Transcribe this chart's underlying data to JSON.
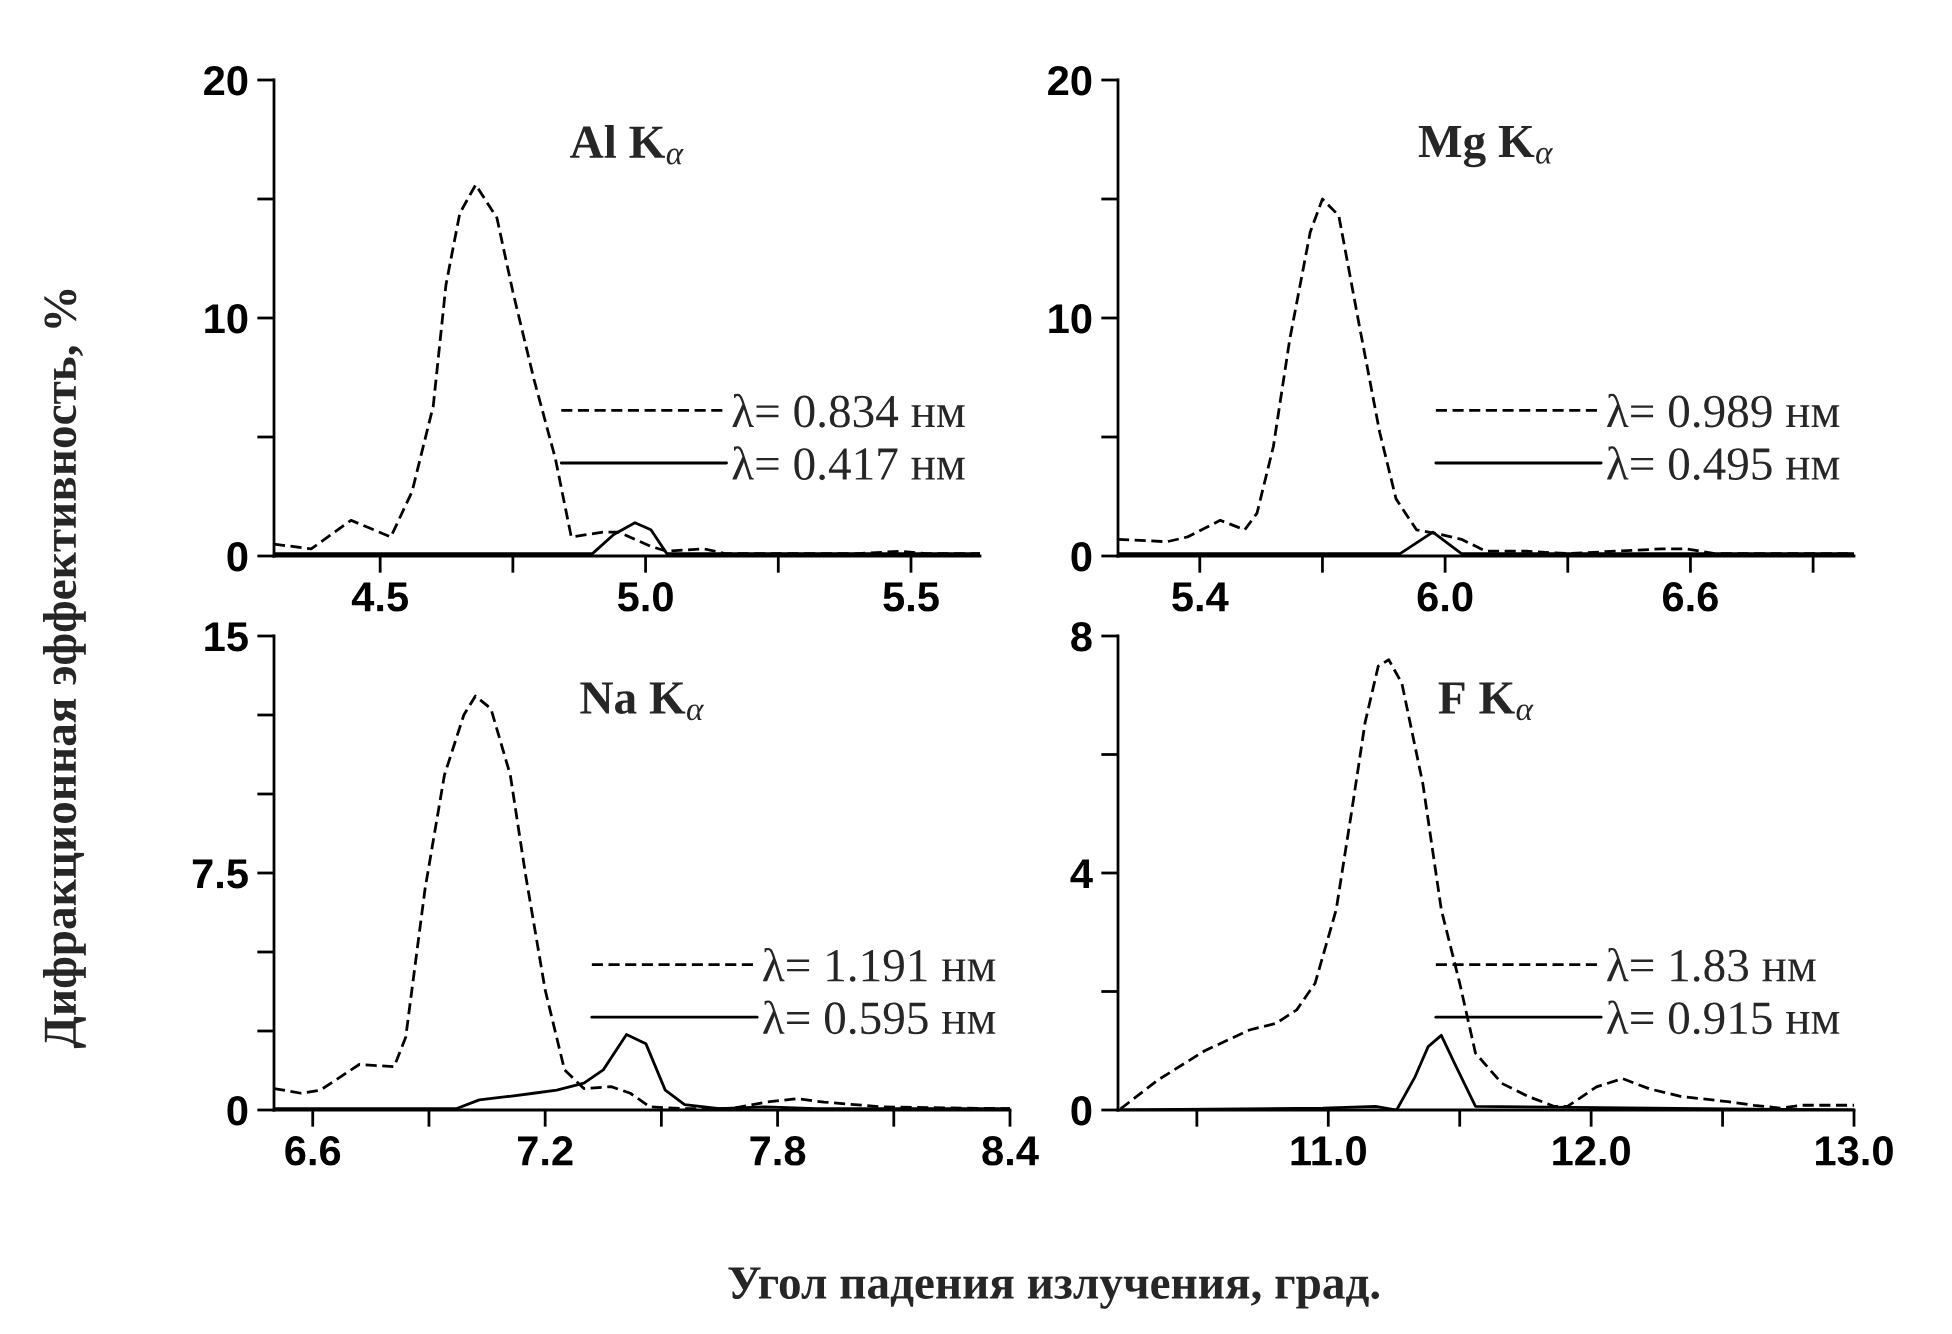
{
  "chart_data": [
    {
      "type": "line",
      "title": "Al K$_{α}$",
      "ylabel": "Дифракционная эффективность, %",
      "xlim": [
        4.3,
        5.63
      ],
      "ylim": [
        0,
        20
      ],
      "legend": "right",
      "grid": false,
      "xticks": [
        4.5,
        {
          "value": 4.75,
          "label": null
        },
        {
          "value": 5,
          "label": "5.0"
        },
        {
          "value": 5.25,
          "label": null
        },
        5.5
      ],
      "yticks": [
        0,
        {
          "value": 5,
          "label": null
        },
        10,
        {
          "value": 15,
          "label": null
        },
        20
      ],
      "series": [
        {
          "name": "λ= 0.834 нм",
          "color": "#000000",
          "line_style": "dashed",
          "x": [
            4.3,
            4.37,
            4.445,
            4.52,
            4.56,
            4.6,
            4.624,
            4.65,
            4.68,
            4.72,
            4.75,
            4.79,
            4.83,
            4.86,
            4.92,
            4.95,
            5.01,
            5.04,
            5.11,
            5.15,
            5.4,
            5.48,
            5.53,
            5.63
          ],
          "values": [
            0.5,
            0.3,
            1.5,
            0.8,
            2.7,
            6.3,
            11.4,
            14.4,
            15.6,
            14.2,
            11.1,
            7.4,
            4.1,
            0.8,
            1.0,
            1.0,
            0.4,
            0.2,
            0.3,
            0.1,
            0.1,
            0.2,
            0.1,
            0.1
          ]
        },
        {
          "name": "λ= 0.417 нм",
          "color": "#000000",
          "line_style": "solid",
          "x": [
            4.3,
            4.36,
            4.445,
            4.51,
            4.9,
            4.94,
            4.98,
            5.01,
            5.04,
            5.63
          ],
          "values": [
            0.1,
            0.1,
            0.1,
            0.1,
            0.1,
            0.9,
            1.4,
            1.1,
            0.1,
            0.1
          ]
        }
      ]
    },
    {
      "type": "line",
      "title": "Mg K$_{α}$",
      "xlim": [
        5.2,
        7.0
      ],
      "ylim": [
        0,
        20
      ],
      "legend": "right",
      "grid": false,
      "xticks": [
        5.4,
        {
          "value": 5.7,
          "label": null
        },
        {
          "value": 6,
          "label": "6.0"
        },
        {
          "value": 6.3,
          "label": null
        },
        6.6,
        {
          "value": 6.9,
          "label": null
        }
      ],
      "yticks": [
        0,
        {
          "value": 5,
          "label": null
        },
        10,
        {
          "value": 15,
          "label": null
        },
        20
      ],
      "series": [
        {
          "name": "λ= 0.989 нм",
          "color": "#000000",
          "line_style": "dashed",
          "x": [
            5.2,
            5.32,
            5.37,
            5.45,
            5.51,
            5.54,
            5.58,
            5.62,
            5.67,
            5.7,
            5.74,
            5.79,
            5.84,
            5.88,
            5.93,
            5.99,
            6.04,
            6.1,
            6.2,
            6.3,
            6.53,
            6.59,
            6.66,
            7.0
          ],
          "values": [
            0.7,
            0.6,
            0.8,
            1.5,
            1.1,
            1.8,
            4.6,
            9.1,
            13.6,
            15.0,
            14.3,
            9.7,
            5.2,
            2.4,
            1.1,
            0.9,
            0.7,
            0.2,
            0.2,
            0.1,
            0.3,
            0.3,
            0.1,
            0.1
          ]
        },
        {
          "name": "λ= 0.495 нм",
          "color": "#000000",
          "line_style": "solid",
          "x": [
            5.2,
            5.89,
            5.97,
            6.04,
            7.0
          ],
          "values": [
            0.1,
            0.1,
            1.0,
            0.1,
            0.1
          ]
        }
      ]
    },
    {
      "type": "line",
      "title": "Na K$_{α}$",
      "xlabel": "Угол падения излучения, град.",
      "xlim": [
        6.5,
        8.4
      ],
      "ylim": [
        0,
        15
      ],
      "legend": "right",
      "grid": false,
      "xticks": [
        6.6,
        {
          "value": 6.9,
          "label": null
        },
        7.2,
        {
          "value": 7.5,
          "label": null
        },
        7.8,
        {
          "value": 8.1,
          "label": null
        },
        8.4
      ],
      "yticks": [
        0,
        {
          "value": 2.5,
          "label": null
        },
        {
          "value": 5,
          "label": null
        },
        7.5,
        {
          "value": 10,
          "label": null
        },
        {
          "value": 12.5,
          "label": null
        },
        15
      ],
      "series": [
        {
          "name": "λ= 1.191 нм",
          "color": "#000000",
          "line_style": "dashed",
          "x": [
            6.5,
            6.57,
            6.62,
            6.72,
            6.81,
            6.84,
            6.89,
            6.94,
            6.99,
            7.02,
            7.06,
            7.11,
            7.15,
            7.2,
            7.25,
            7.3,
            7.37,
            7.42,
            7.47,
            7.56,
            7.68,
            7.77,
            7.85,
            7.92,
            8.07,
            8.4
          ],
          "values": [
            0.68,
            0.53,
            0.63,
            1.44,
            1.37,
            2.3,
            7.0,
            10.6,
            12.5,
            13.1,
            12.7,
            10.6,
            7.4,
            3.8,
            1.27,
            0.68,
            0.74,
            0.53,
            0.1,
            0.04,
            0.04,
            0.25,
            0.36,
            0.25,
            0.1,
            0.04
          ]
        },
        {
          "name": "λ= 0.595 нм",
          "color": "#000000",
          "line_style": "solid",
          "x": [
            6.5,
            6.97,
            7.03,
            7.1,
            7.17,
            7.23,
            7.3,
            7.35,
            7.41,
            7.46,
            7.51,
            7.56,
            7.65,
            7.77,
            7.9,
            8.4
          ],
          "values": [
            0.04,
            0.04,
            0.32,
            0.42,
            0.53,
            0.63,
            0.85,
            1.27,
            2.39,
            2.1,
            0.63,
            0.17,
            0.04,
            0.1,
            0.04,
            0.04
          ]
        }
      ]
    },
    {
      "type": "line",
      "title": "F K$_{α}$",
      "xlim": [
        10.2,
        13.0
      ],
      "ylim": [
        0,
        8
      ],
      "legend": "right",
      "grid": false,
      "xticks": [
        {
          "value": 10.5,
          "label": null
        },
        {
          "value": 11,
          "label": "11.0"
        },
        {
          "value": 11.5,
          "label": null
        },
        {
          "value": 12,
          "label": "12.0"
        },
        {
          "value": 12.5,
          "label": null
        },
        {
          "value": 13,
          "label": "13.0"
        }
      ],
      "yticks": [
        0,
        {
          "value": 2,
          "label": null
        },
        4,
        {
          "value": 6,
          "label": null
        },
        8
      ],
      "series": [
        {
          "name": "λ= 1.83 нм",
          "color": "#000000",
          "line_style": "dashed",
          "x": [
            10.21,
            10.35,
            10.53,
            10.7,
            10.8,
            10.88,
            10.95,
            11.03,
            11.09,
            11.14,
            11.19,
            11.23,
            11.28,
            11.36,
            11.43,
            11.5,
            11.56,
            11.66,
            11.76,
            11.86,
            11.91,
            12.02,
            12.12,
            12.22,
            12.34,
            12.52,
            12.62,
            12.72,
            12.8,
            13.0
          ],
          "values": [
            0.02,
            0.5,
            1.0,
            1.35,
            1.46,
            1.69,
            2.14,
            3.38,
            5.07,
            6.54,
            7.49,
            7.6,
            7.2,
            5.5,
            3.38,
            2.14,
            0.96,
            0.45,
            0.23,
            0.06,
            0.06,
            0.39,
            0.53,
            0.36,
            0.23,
            0.14,
            0.08,
            0.03,
            0.08,
            0.08
          ]
        },
        {
          "name": "λ= 0.915 нм",
          "color": "#000000",
          "line_style": "solid",
          "x": [
            10.21,
            10.98,
            11.18,
            11.26,
            11.33,
            11.38,
            11.43,
            11.48,
            11.56,
            13.0
          ],
          "values": [
            0,
            0.03,
            0.06,
            0,
            0.56,
            1.07,
            1.26,
            0.79,
            0.06,
            0
          ]
        }
      ]
    }
  ]
}
